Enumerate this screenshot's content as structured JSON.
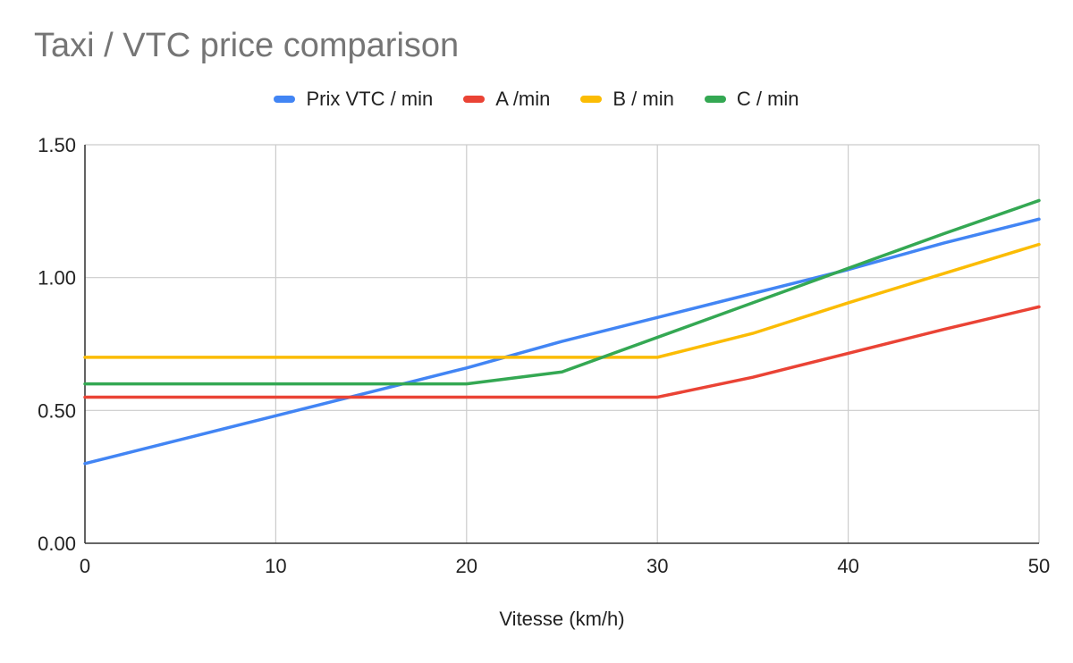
{
  "chart_data": {
    "type": "line",
    "title": "Taxi / VTC price comparison",
    "xlabel": "Vitesse (km/h)",
    "ylabel": "",
    "xlim": [
      0,
      50
    ],
    "ylim": [
      0,
      1.5
    ],
    "x_ticks": [
      "0",
      "10",
      "20",
      "30",
      "40",
      "50"
    ],
    "y_ticks": [
      "0.00",
      "0.50",
      "1.00",
      "1.50"
    ],
    "grid": true,
    "legend_position": "top",
    "x": [
      0,
      5,
      10,
      15,
      20,
      25,
      30,
      35,
      40,
      45,
      50
    ],
    "series": [
      {
        "name": "Prix VTC / min",
        "color": "#4285f4",
        "values": [
          0.3,
          0.39,
          0.48,
          0.57,
          0.66,
          0.76,
          0.85,
          0.94,
          1.03,
          1.13,
          1.22
        ]
      },
      {
        "name": "A /min",
        "color": "#ea4335",
        "values": [
          0.55,
          0.55,
          0.55,
          0.55,
          0.55,
          0.55,
          0.55,
          0.625,
          0.715,
          0.805,
          0.89
        ]
      },
      {
        "name": "B / min",
        "color": "#fbbc04",
        "values": [
          0.7,
          0.7,
          0.7,
          0.7,
          0.7,
          0.7,
          0.7,
          0.79,
          0.905,
          1.015,
          1.125
        ]
      },
      {
        "name": "C / min",
        "color": "#34a853",
        "values": [
          0.6,
          0.6,
          0.6,
          0.6,
          0.6,
          0.645,
          0.775,
          0.905,
          1.035,
          1.165,
          1.29
        ]
      }
    ]
  }
}
